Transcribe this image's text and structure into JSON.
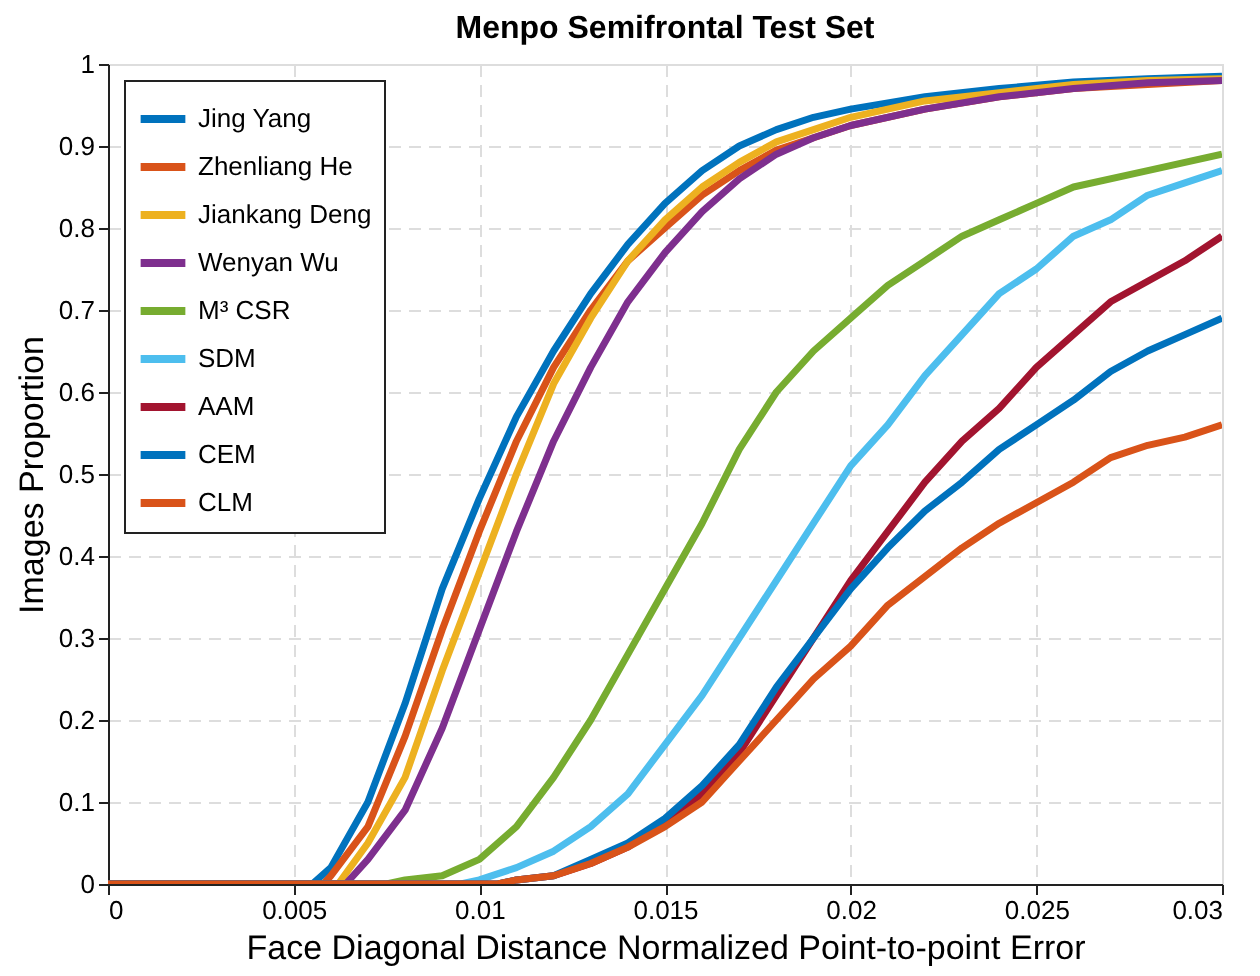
{
  "chart_data": {
    "type": "line",
    "title": "Menpo Semifrontal Test Set",
    "xlabel": "Face Diagonal Distance Normalized Point-to-point Error",
    "ylabel": "Images Proportion",
    "xlim": [
      0,
      0.03
    ],
    "ylim": [
      0,
      1
    ],
    "xticks": [
      0,
      0.005,
      0.01,
      0.015,
      0.02,
      0.025,
      0.03
    ],
    "yticks": [
      0,
      0.1,
      0.2,
      0.3,
      0.4,
      0.5,
      0.6,
      0.7,
      0.8,
      0.9,
      1
    ],
    "grid": true,
    "legend": "top left",
    "marker": "none",
    "line_style": "solid",
    "series": [
      {
        "name": "Jing Yang",
        "color": "#0072bd",
        "x": [
          0,
          0.0055,
          0.006,
          0.007,
          0.008,
          0.009,
          0.01,
          0.011,
          0.012,
          0.013,
          0.014,
          0.015,
          0.016,
          0.017,
          0.018,
          0.019,
          0.02,
          0.022,
          0.024,
          0.026,
          0.028,
          0.03
        ],
        "values": [
          0,
          0,
          0.02,
          0.1,
          0.22,
          0.36,
          0.47,
          0.57,
          0.65,
          0.72,
          0.78,
          0.83,
          0.87,
          0.9,
          0.92,
          0.935,
          0.945,
          0.96,
          0.97,
          0.978,
          0.982,
          0.985
        ]
      },
      {
        "name": "Zhenliang He",
        "color": "#d95319",
        "x": [
          0,
          0.0058,
          0.006,
          0.007,
          0.008,
          0.009,
          0.01,
          0.011,
          0.012,
          0.013,
          0.014,
          0.015,
          0.016,
          0.017,
          0.018,
          0.019,
          0.02,
          0.022,
          0.024,
          0.026,
          0.028,
          0.03
        ],
        "values": [
          0,
          0,
          0.01,
          0.07,
          0.18,
          0.31,
          0.43,
          0.54,
          0.63,
          0.7,
          0.76,
          0.8,
          0.84,
          0.87,
          0.895,
          0.91,
          0.925,
          0.945,
          0.96,
          0.97,
          0.975,
          0.98
        ]
      },
      {
        "name": "Jiankang Deng",
        "color": "#edb120",
        "x": [
          0,
          0.0062,
          0.007,
          0.008,
          0.009,
          0.01,
          0.011,
          0.012,
          0.013,
          0.014,
          0.015,
          0.016,
          0.017,
          0.018,
          0.019,
          0.02,
          0.022,
          0.024,
          0.026,
          0.028,
          0.03
        ],
        "values": [
          0,
          0,
          0.05,
          0.13,
          0.26,
          0.38,
          0.5,
          0.61,
          0.69,
          0.76,
          0.81,
          0.85,
          0.88,
          0.905,
          0.92,
          0.935,
          0.955,
          0.965,
          0.975,
          0.98,
          0.982
        ]
      },
      {
        "name": "Wenyan Wu",
        "color": "#7e2f8e",
        "x": [
          0,
          0.0064,
          0.007,
          0.008,
          0.009,
          0.01,
          0.011,
          0.012,
          0.013,
          0.014,
          0.015,
          0.016,
          0.017,
          0.018,
          0.019,
          0.02,
          0.022,
          0.024,
          0.026,
          0.028,
          0.03
        ],
        "values": [
          0,
          0,
          0.03,
          0.09,
          0.19,
          0.31,
          0.43,
          0.54,
          0.63,
          0.71,
          0.77,
          0.82,
          0.86,
          0.89,
          0.91,
          0.925,
          0.945,
          0.96,
          0.97,
          0.977,
          0.98
        ]
      },
      {
        "name": "M³ CSR",
        "color": "#77ac30",
        "x": [
          0,
          0.0075,
          0.008,
          0.009,
          0.01,
          0.011,
          0.012,
          0.013,
          0.014,
          0.015,
          0.016,
          0.017,
          0.018,
          0.019,
          0.02,
          0.021,
          0.022,
          0.023,
          0.024,
          0.025,
          0.026,
          0.028,
          0.03
        ],
        "values": [
          0,
          0,
          0.005,
          0.01,
          0.03,
          0.07,
          0.13,
          0.2,
          0.28,
          0.36,
          0.44,
          0.53,
          0.6,
          0.65,
          0.69,
          0.73,
          0.76,
          0.79,
          0.81,
          0.83,
          0.85,
          0.87,
          0.89
        ]
      },
      {
        "name": "SDM",
        "color": "#4dbeee",
        "x": [
          0,
          0.0095,
          0.01,
          0.011,
          0.012,
          0.013,
          0.014,
          0.015,
          0.016,
          0.017,
          0.018,
          0.019,
          0.02,
          0.021,
          0.022,
          0.023,
          0.024,
          0.025,
          0.026,
          0.027,
          0.028,
          0.029,
          0.03
        ],
        "values": [
          0,
          0,
          0.005,
          0.02,
          0.04,
          0.07,
          0.11,
          0.17,
          0.23,
          0.3,
          0.37,
          0.44,
          0.51,
          0.56,
          0.62,
          0.67,
          0.72,
          0.75,
          0.79,
          0.81,
          0.84,
          0.855,
          0.87
        ]
      },
      {
        "name": "AAM",
        "color": "#a2142f",
        "x": [
          0,
          0.0105,
          0.011,
          0.012,
          0.013,
          0.014,
          0.015,
          0.016,
          0.017,
          0.018,
          0.019,
          0.02,
          0.021,
          0.022,
          0.023,
          0.024,
          0.025,
          0.026,
          0.027,
          0.028,
          0.029,
          0.03
        ],
        "values": [
          0,
          0,
          0.005,
          0.01,
          0.025,
          0.045,
          0.075,
          0.11,
          0.16,
          0.23,
          0.3,
          0.37,
          0.43,
          0.49,
          0.54,
          0.58,
          0.63,
          0.67,
          0.71,
          0.735,
          0.76,
          0.79
        ]
      },
      {
        "name": "CEM",
        "color": "#0072bd",
        "x": [
          0,
          0.0105,
          0.011,
          0.012,
          0.013,
          0.014,
          0.015,
          0.016,
          0.017,
          0.018,
          0.019,
          0.02,
          0.021,
          0.022,
          0.023,
          0.024,
          0.025,
          0.026,
          0.027,
          0.028,
          0.029,
          0.03
        ],
        "values": [
          0,
          0,
          0.005,
          0.01,
          0.03,
          0.05,
          0.08,
          0.12,
          0.17,
          0.24,
          0.3,
          0.36,
          0.41,
          0.455,
          0.49,
          0.53,
          0.56,
          0.59,
          0.625,
          0.65,
          0.67,
          0.69
        ]
      },
      {
        "name": "CLM",
        "color": "#d95319",
        "x": [
          0,
          0.0105,
          0.011,
          0.012,
          0.013,
          0.014,
          0.015,
          0.016,
          0.017,
          0.018,
          0.019,
          0.02,
          0.021,
          0.022,
          0.023,
          0.024,
          0.025,
          0.026,
          0.027,
          0.028,
          0.029,
          0.03
        ],
        "values": [
          0,
          0,
          0.005,
          0.01,
          0.025,
          0.045,
          0.07,
          0.1,
          0.15,
          0.2,
          0.25,
          0.29,
          0.34,
          0.375,
          0.41,
          0.44,
          0.465,
          0.49,
          0.52,
          0.535,
          0.545,
          0.56
        ]
      }
    ]
  }
}
